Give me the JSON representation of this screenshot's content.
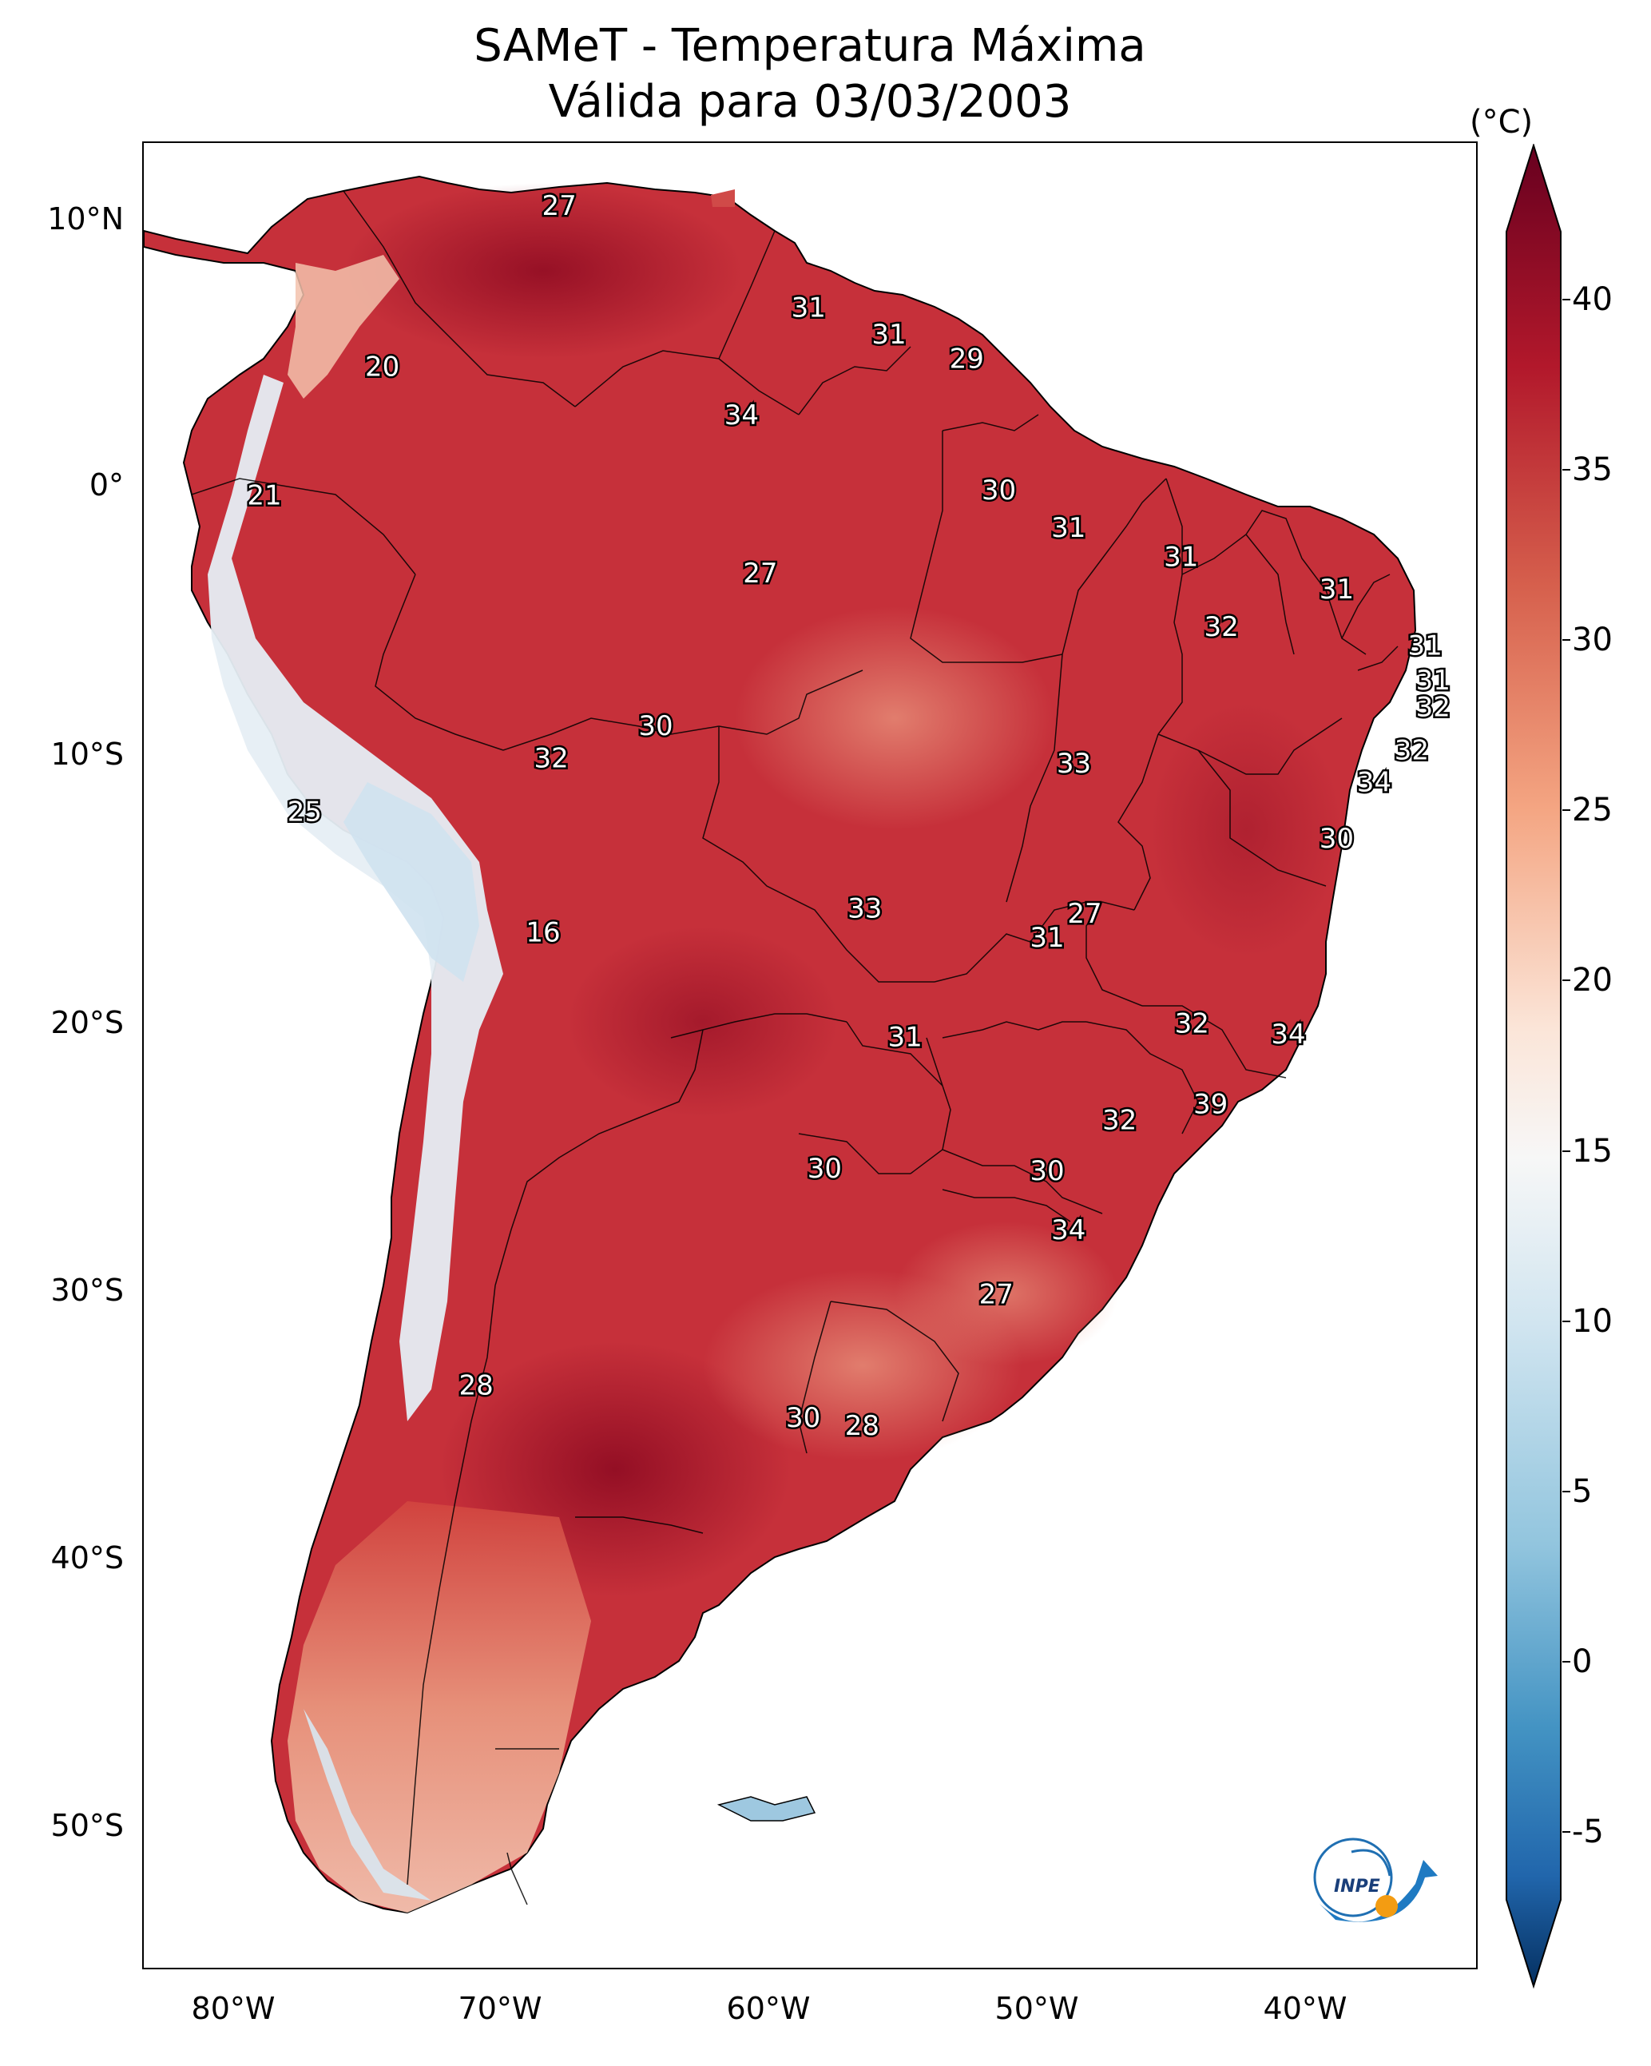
{
  "title": {
    "line1": "SAMeT - Temperatura Máxima",
    "line2": "Válida para 03/03/2003"
  },
  "map": {
    "lat_labels": [
      "10°N",
      "0°",
      "10°S",
      "20°S",
      "30°S",
      "40°S",
      "50°S"
    ],
    "lon_labels": [
      "80°W",
      "70°W",
      "60°W",
      "50°W",
      "40°W"
    ],
    "colors": {
      "hot": "#8e0b22",
      "warm": "#c6303a",
      "mild": "#e0745f",
      "cool": "#f7d2c0",
      "cold": "#d3e5f0",
      "ocean": "#ffffff"
    },
    "point_labels": [
      {
        "value": "27",
        "lat": 10.6,
        "lon": -67.5
      },
      {
        "value": "20",
        "lat": 4.6,
        "lon": -74.1
      },
      {
        "value": "31",
        "lat": 6.8,
        "lon": -58.2
      },
      {
        "value": "31",
        "lat": 5.8,
        "lon": -55.2
      },
      {
        "value": "29",
        "lat": 4.9,
        "lon": -52.3
      },
      {
        "value": "34",
        "lat": 2.8,
        "lon": -60.7
      },
      {
        "value": "21",
        "lat": -0.2,
        "lon": -78.5
      },
      {
        "value": "30",
        "lat": 0.0,
        "lon": -51.1
      },
      {
        "value": "31",
        "lat": -1.4,
        "lon": -48.5
      },
      {
        "value": "27",
        "lat": -3.1,
        "lon": -60.0
      },
      {
        "value": "31",
        "lat": -2.5,
        "lon": -44.3
      },
      {
        "value": "31",
        "lat": -3.7,
        "lon": -38.5
      },
      {
        "value": "32",
        "lat": -5.1,
        "lon": -42.8
      },
      {
        "value": "31",
        "lat": -5.8,
        "lon": -35.2
      },
      {
        "value": "31",
        "lat": -7.1,
        "lon": -34.9
      },
      {
        "value": "32",
        "lat": -8.1,
        "lon": -34.9
      },
      {
        "value": "30",
        "lat": -8.8,
        "lon": -63.9
      },
      {
        "value": "32",
        "lat": -10.0,
        "lon": -67.8
      },
      {
        "value": "32",
        "lat": -9.7,
        "lon": -35.7
      },
      {
        "value": "33",
        "lat": -10.2,
        "lon": -48.3
      },
      {
        "value": "34",
        "lat": -10.9,
        "lon": -37.1
      },
      {
        "value": "25",
        "lat": -12.0,
        "lon": -77.0
      },
      {
        "value": "30",
        "lat": -13.0,
        "lon": -38.5
      },
      {
        "value": "16",
        "lat": -16.5,
        "lon": -68.1
      },
      {
        "value": "33",
        "lat": -15.6,
        "lon": -56.1
      },
      {
        "value": "27",
        "lat": -15.8,
        "lon": -47.9
      },
      {
        "value": "31",
        "lat": -16.7,
        "lon": -49.3
      },
      {
        "value": "31",
        "lat": -20.4,
        "lon": -54.6
      },
      {
        "value": "32",
        "lat": -19.9,
        "lon": -43.9
      },
      {
        "value": "34",
        "lat": -20.3,
        "lon": -40.3
      },
      {
        "value": "39",
        "lat": -22.9,
        "lon": -43.2
      },
      {
        "value": "32",
        "lat": -23.5,
        "lon": -46.6
      },
      {
        "value": "30",
        "lat": -25.3,
        "lon": -57.6
      },
      {
        "value": "30",
        "lat": -25.4,
        "lon": -49.3
      },
      {
        "value": "34",
        "lat": -27.6,
        "lon": -48.5
      },
      {
        "value": "27",
        "lat": -30.0,
        "lon": -51.2
      },
      {
        "value": "28",
        "lat": -33.4,
        "lon": -70.6
      },
      {
        "value": "30",
        "lat": -34.6,
        "lon": -58.4
      },
      {
        "value": "28",
        "lat": -34.9,
        "lon": -56.2
      }
    ]
  },
  "colorbar": {
    "unit": "(°C)",
    "ticks": [
      "40",
      "35",
      "30",
      "25",
      "20",
      "15",
      "10",
      "5",
      "0",
      "-5"
    ],
    "tick_values": [
      40,
      35,
      30,
      25,
      20,
      15,
      10,
      5,
      0,
      -5
    ],
    "range": [
      -7,
      42
    ]
  },
  "logo": {
    "text": "INPE"
  }
}
